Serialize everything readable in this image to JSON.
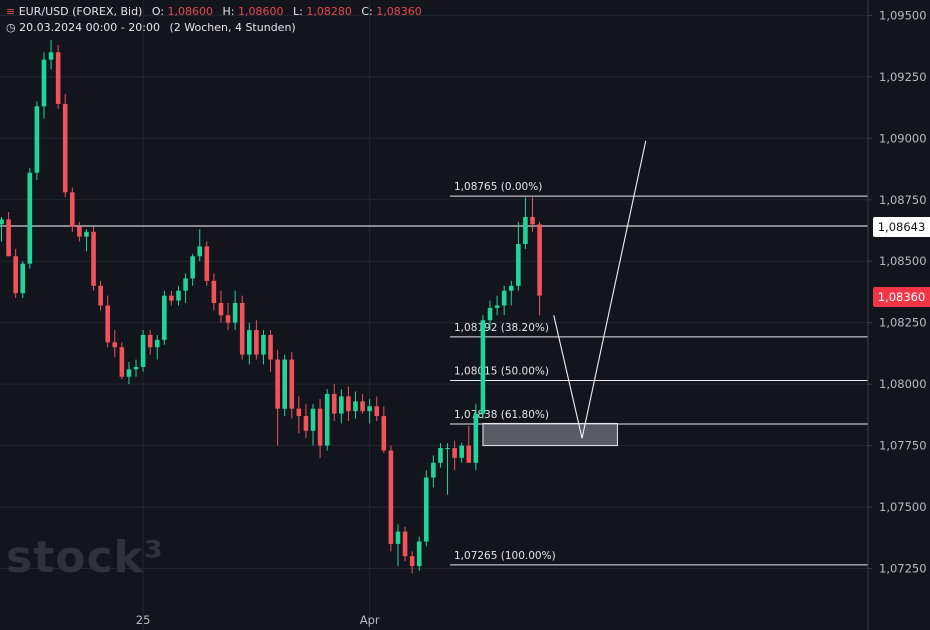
{
  "header": {
    "symbol_icon": "bar-chart-icon",
    "symbol": "EUR/USD (FOREX, Bid)",
    "open_label": "O:",
    "open": "1,08600",
    "high_label": "H:",
    "high": "1,08600",
    "low_label": "L:",
    "low": "1,08280",
    "close_label": "C:",
    "close": "1,08360",
    "time_icon": "clock-icon",
    "range": "20.03.2024 00:00 - 20:00",
    "interval": "(2 Wochen, 4 Stunden)"
  },
  "watermark": "stock³",
  "price_tags": {
    "level": "1,08643",
    "current": "1,08360"
  },
  "chart_data": {
    "type": "candlestick",
    "y_ticks": [
      "1,07250",
      "1,07500",
      "1,07750",
      "1,08000",
      "1,08250",
      "1,08500",
      "1,08750",
      "1,09000",
      "1,09250",
      "1,09500"
    ],
    "x_ticks": [
      {
        "label": "25",
        "index": 20
      },
      {
        "label": "Apr",
        "index": 52
      }
    ],
    "ylim": [
      1.072,
      1.0953
    ],
    "horizontal_level": 1.08643,
    "fibonacci": [
      {
        "label": "1,08765 (0.00%)",
        "value": 1.08765
      },
      {
        "label": "1,08192 (38.20%)",
        "value": 1.08192
      },
      {
        "label": "1,08015 (50.00%)",
        "value": 1.08015
      },
      {
        "label": "1,07838 (61.80%)",
        "value": 1.07838
      },
      {
        "label": "1,07265 (100.00%)",
        "value": 1.07265
      }
    ],
    "zone": {
      "from_index": 68,
      "to_index": 87,
      "low": 1.0775,
      "high": 1.0784
    },
    "projection": [
      {
        "index": 78,
        "price": 1.0828
      },
      {
        "index": 82,
        "price": 1.0778
      },
      {
        "index": 91,
        "price": 1.0899
      }
    ],
    "candles": [
      {
        "o": 1.0865,
        "h": 1.0868,
        "l": 1.0858,
        "c": 1.0867
      },
      {
        "o": 1.0867,
        "h": 1.087,
        "l": 1.0852,
        "c": 1.0852
      },
      {
        "o": 1.0852,
        "h": 1.0855,
        "l": 1.0835,
        "c": 1.0837
      },
      {
        "o": 1.0837,
        "h": 1.085,
        "l": 1.0835,
        "c": 1.0849
      },
      {
        "o": 1.0849,
        "h": 1.0888,
        "l": 1.0847,
        "c": 1.0886
      },
      {
        "o": 1.0886,
        "h": 1.0915,
        "l": 1.0883,
        "c": 1.0913
      },
      {
        "o": 1.0913,
        "h": 1.0935,
        "l": 1.0908,
        "c": 1.0932
      },
      {
        "o": 1.0932,
        "h": 1.094,
        "l": 1.0928,
        "c": 1.0935
      },
      {
        "o": 1.0935,
        "h": 1.0938,
        "l": 1.0912,
        "c": 1.0914
      },
      {
        "o": 1.0914,
        "h": 1.0918,
        "l": 1.0876,
        "c": 1.0878
      },
      {
        "o": 1.0878,
        "h": 1.088,
        "l": 1.0862,
        "c": 1.0864
      },
      {
        "o": 1.0864,
        "h": 1.0866,
        "l": 1.0858,
        "c": 1.086
      },
      {
        "o": 1.086,
        "h": 1.0863,
        "l": 1.0854,
        "c": 1.0862
      },
      {
        "o": 1.0862,
        "h": 1.0864,
        "l": 1.0838,
        "c": 1.084
      },
      {
        "o": 1.084,
        "h": 1.0842,
        "l": 1.083,
        "c": 1.0832
      },
      {
        "o": 1.0832,
        "h": 1.0836,
        "l": 1.0815,
        "c": 1.0817
      },
      {
        "o": 1.0817,
        "h": 1.0822,
        "l": 1.0811,
        "c": 1.0815
      },
      {
        "o": 1.0815,
        "h": 1.0817,
        "l": 1.0802,
        "c": 1.0803
      },
      {
        "o": 1.0803,
        "h": 1.0809,
        "l": 1.08,
        "c": 1.0806
      },
      {
        "o": 1.0806,
        "h": 1.081,
        "l": 1.0803,
        "c": 1.0807
      },
      {
        "o": 1.0807,
        "h": 1.0822,
        "l": 1.0805,
        "c": 1.082
      },
      {
        "o": 1.082,
        "h": 1.0822,
        "l": 1.0812,
        "c": 1.0815
      },
      {
        "o": 1.0815,
        "h": 1.082,
        "l": 1.081,
        "c": 1.0818
      },
      {
        "o": 1.0818,
        "h": 1.0838,
        "l": 1.0816,
        "c": 1.0836
      },
      {
        "o": 1.0836,
        "h": 1.0838,
        "l": 1.0832,
        "c": 1.0834
      },
      {
        "o": 1.0834,
        "h": 1.084,
        "l": 1.0832,
        "c": 1.0838
      },
      {
        "o": 1.0838,
        "h": 1.0845,
        "l": 1.0833,
        "c": 1.0843
      },
      {
        "o": 1.0843,
        "h": 1.0853,
        "l": 1.084,
        "c": 1.0852
      },
      {
        "o": 1.0852,
        "h": 1.0863,
        "l": 1.085,
        "c": 1.0856
      },
      {
        "o": 1.0856,
        "h": 1.0858,
        "l": 1.084,
        "c": 1.0842
      },
      {
        "o": 1.0842,
        "h": 1.0845,
        "l": 1.083,
        "c": 1.0833
      },
      {
        "o": 1.0833,
        "h": 1.0838,
        "l": 1.0825,
        "c": 1.0828
      },
      {
        "o": 1.0828,
        "h": 1.0833,
        "l": 1.0822,
        "c": 1.0825
      },
      {
        "o": 1.0825,
        "h": 1.0838,
        "l": 1.0822,
        "c": 1.0833
      },
      {
        "o": 1.0833,
        "h": 1.0836,
        "l": 1.081,
        "c": 1.0812
      },
      {
        "o": 1.0812,
        "h": 1.0825,
        "l": 1.0808,
        "c": 1.0822
      },
      {
        "o": 1.0822,
        "h": 1.0826,
        "l": 1.081,
        "c": 1.0812
      },
      {
        "o": 1.0812,
        "h": 1.0822,
        "l": 1.0808,
        "c": 1.082
      },
      {
        "o": 1.082,
        "h": 1.0822,
        "l": 1.0805,
        "c": 1.081
      },
      {
        "o": 1.081,
        "h": 1.0814,
        "l": 1.0775,
        "c": 1.079
      },
      {
        "o": 1.079,
        "h": 1.0812,
        "l": 1.0787,
        "c": 1.081
      },
      {
        "o": 1.081,
        "h": 1.0813,
        "l": 1.0786,
        "c": 1.079
      },
      {
        "o": 1.079,
        "h": 1.0795,
        "l": 1.078,
        "c": 1.0787
      },
      {
        "o": 1.0787,
        "h": 1.0792,
        "l": 1.0778,
        "c": 1.0781
      },
      {
        "o": 1.0781,
        "h": 1.0792,
        "l": 1.0775,
        "c": 1.079
      },
      {
        "o": 1.079,
        "h": 1.0794,
        "l": 1.077,
        "c": 1.0775
      },
      {
        "o": 1.0775,
        "h": 1.0798,
        "l": 1.0773,
        "c": 1.0796
      },
      {
        "o": 1.0796,
        "h": 1.08,
        "l": 1.0785,
        "c": 1.0788
      },
      {
        "o": 1.0788,
        "h": 1.0798,
        "l": 1.0784,
        "c": 1.0795
      },
      {
        "o": 1.0795,
        "h": 1.0799,
        "l": 1.0785,
        "c": 1.0789
      },
      {
        "o": 1.0789,
        "h": 1.0797,
        "l": 1.0786,
        "c": 1.0793
      },
      {
        "o": 1.0793,
        "h": 1.0796,
        "l": 1.0788,
        "c": 1.0789
      },
      {
        "o": 1.0789,
        "h": 1.0794,
        "l": 1.0784,
        "c": 1.0791
      },
      {
        "o": 1.0791,
        "h": 1.0795,
        "l": 1.0785,
        "c": 1.0787
      },
      {
        "o": 1.0787,
        "h": 1.0791,
        "l": 1.0772,
        "c": 1.0773
      },
      {
        "o": 1.0773,
        "h": 1.0775,
        "l": 1.0732,
        "c": 1.0735
      },
      {
        "o": 1.0735,
        "h": 1.0743,
        "l": 1.0726,
        "c": 1.074
      },
      {
        "o": 1.074,
        "h": 1.0742,
        "l": 1.0728,
        "c": 1.073
      },
      {
        "o": 1.073,
        "h": 1.0732,
        "l": 1.0723,
        "c": 1.0726
      },
      {
        "o": 1.0726,
        "h": 1.0738,
        "l": 1.0724,
        "c": 1.0736
      },
      {
        "o": 1.0736,
        "h": 1.0765,
        "l": 1.0734,
        "c": 1.0762
      },
      {
        "o": 1.0762,
        "h": 1.0771,
        "l": 1.0758,
        "c": 1.0768
      },
      {
        "o": 1.0768,
        "h": 1.0776,
        "l": 1.0766,
        "c": 1.0774
      },
      {
        "o": 1.0774,
        "h": 1.0776,
        "l": 1.0755,
        "c": 1.0774
      },
      {
        "o": 1.0774,
        "h": 1.0777,
        "l": 1.0765,
        "c": 1.077
      },
      {
        "o": 1.077,
        "h": 1.0776,
        "l": 1.0768,
        "c": 1.0775
      },
      {
        "o": 1.0775,
        "h": 1.0783,
        "l": 1.0768,
        "c": 1.0768
      },
      {
        "o": 1.0768,
        "h": 1.0792,
        "l": 1.0765,
        "c": 1.0788
      },
      {
        "o": 1.0788,
        "h": 1.0828,
        "l": 1.0786,
        "c": 1.0826
      },
      {
        "o": 1.0826,
        "h": 1.0834,
        "l": 1.0822,
        "c": 1.0831
      },
      {
        "o": 1.0831,
        "h": 1.0836,
        "l": 1.0828,
        "c": 1.0832
      },
      {
        "o": 1.0832,
        "h": 1.084,
        "l": 1.0828,
        "c": 1.0838
      },
      {
        "o": 1.0838,
        "h": 1.0842,
        "l": 1.0832,
        "c": 1.084
      },
      {
        "o": 1.084,
        "h": 1.0866,
        "l": 1.0838,
        "c": 1.0857
      },
      {
        "o": 1.0857,
        "h": 1.0876,
        "l": 1.0855,
        "c": 1.0868
      },
      {
        "o": 1.0868,
        "h": 1.0876,
        "l": 1.0862,
        "c": 1.0865
      },
      {
        "o": 1.0865,
        "h": 1.0866,
        "l": 1.0828,
        "c": 1.0836
      }
    ]
  }
}
